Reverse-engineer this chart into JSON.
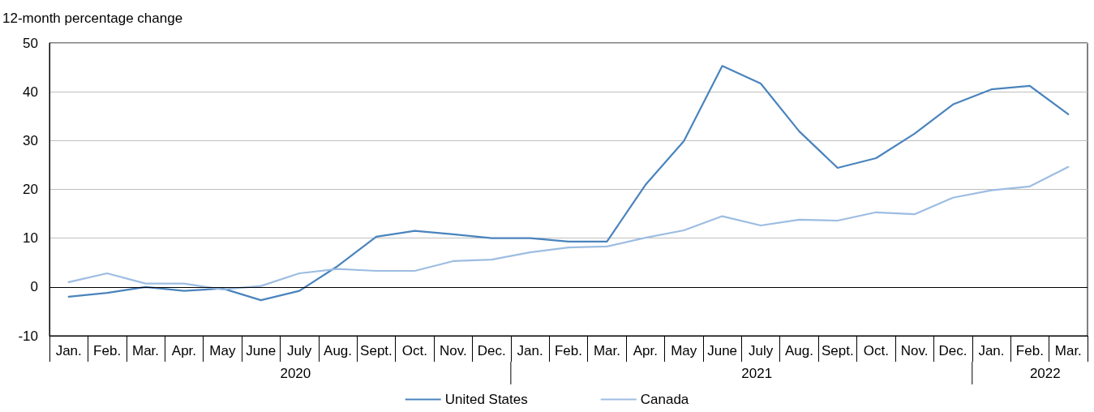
{
  "chart_data": {
    "type": "line",
    "ylabel": "12-month percentage change",
    "categories": [
      "Jan.",
      "Feb.",
      "Mar.",
      "Apr.",
      "May",
      "June",
      "July",
      "Aug.",
      "Sept.",
      "Oct.",
      "Nov.",
      "Dec.",
      "Jan.",
      "Feb.",
      "Mar.",
      "Apr.",
      "May",
      "June",
      "July",
      "Aug.",
      "Sept.",
      "Oct.",
      "Nov.",
      "Dec.",
      "Jan.",
      "Feb.",
      "Mar."
    ],
    "series": [
      {
        "name": "United States",
        "color": "#4a84bd",
        "values": [
          -2.0,
          -1.2,
          0,
          -0.8,
          -0.3,
          -2.7,
          -0.8,
          4.3,
          10.3,
          11.5,
          10.8,
          10.0,
          10.0,
          9.3,
          9.3,
          20.9,
          29.9,
          45.3,
          41.7,
          31.9,
          24.4,
          26.4,
          31.4,
          37.4,
          40.5,
          41.2,
          35.4
        ]
      },
      {
        "name": "Canada",
        "color": "#9dbde2",
        "values": [
          1.0,
          2.8,
          0.7,
          0.7,
          -0.5,
          0.2,
          2.8,
          3.7,
          3.3,
          3.3,
          5.3,
          5.6,
          7.1,
          8.1,
          8.3,
          10.1,
          11.6,
          14.5,
          12.6,
          13.8,
          13.6,
          15.3,
          14.9,
          18.3,
          19.8,
          20.6,
          24.6
        ]
      }
    ],
    "annotations": [
      "2020",
      "2021",
      "2022"
    ],
    "ref_lines": [
      {
        "axis": "y",
        "value": 0,
        "color": "#000000"
      }
    ],
    "ylim": [
      -10,
      50
    ],
    "yticks": [
      -10,
      0,
      10,
      20,
      30,
      40,
      50
    ],
    "grid": "y",
    "legend": "bottom",
    "marker": "none",
    "line_style": "solid"
  }
}
